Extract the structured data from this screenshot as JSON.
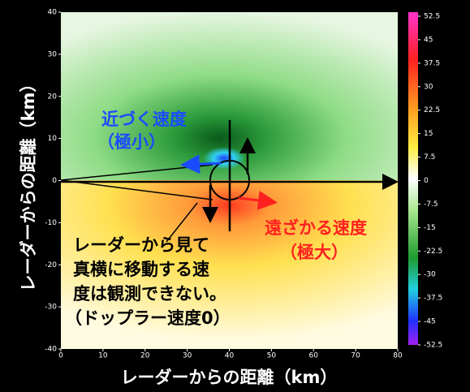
{
  "chart_data": {
    "type": "heatmap",
    "xlabel": "レーダーからの距離（km）",
    "ylabel": "レーダーからの距離（km）",
    "xlim": [
      0,
      80
    ],
    "ylim": [
      -40,
      40
    ],
    "xticks": [
      0,
      10,
      20,
      30,
      40,
      50,
      60,
      70,
      80
    ],
    "yticks": [
      -40,
      -30,
      -20,
      -10,
      0,
      10,
      20,
      30,
      40
    ],
    "colorbar": {
      "clim": [
        -52.5,
        52.5
      ],
      "ticks": [
        52.5,
        45,
        37.5,
        30,
        22.5,
        15,
        7.5,
        0,
        -7.5,
        -15,
        -22.5,
        -30,
        -37.5,
        -45,
        -52.5
      ],
      "colorscale": [
        {
          "value": 52.5,
          "color": "#ff33cc"
        },
        {
          "value": 37.5,
          "color": "#ff2020"
        },
        {
          "value": 22.5,
          "color": "#ff9a20"
        },
        {
          "value": 10,
          "color": "#ffee40"
        },
        {
          "value": 0,
          "color": "#ffffff"
        },
        {
          "value": -10,
          "color": "#a8e890"
        },
        {
          "value": -25,
          "color": "#1f9a30"
        },
        {
          "value": -35,
          "color": "#20d0e0"
        },
        {
          "value": -45,
          "color": "#2030ff"
        },
        {
          "value": -52.5,
          "color": "#a020f0"
        }
      ]
    },
    "annotations": {
      "approach": [
        "近づく速度",
        "（極小）"
      ],
      "recede": [
        "遠ざかる速度",
        "（極大）"
      ],
      "note": [
        "レーダーから見て",
        "真横に移動する速",
        "度は観測できない。",
        "（ドップラー速度0）"
      ]
    }
  }
}
